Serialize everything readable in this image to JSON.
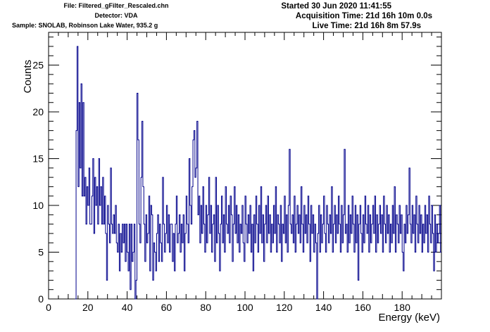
{
  "header": {
    "file": "File: Filtered_gFilter_Rescaled.chn",
    "detector": "Detector: VDA",
    "sample": "Sample: SNOLAB, Robinson Lake Water, 935.2 g",
    "started": "Started 30 Jun 2020 11:41:55",
    "acquisition_time": "Acquisition Time: 21d 16h 10m 0.0s",
    "live_time": "Live Time: 21d 16h 8m 57.9s"
  },
  "colors": {
    "series": "#00008b",
    "axis": "#000000",
    "background": "#ffffff"
  },
  "chart_data": {
    "type": "line",
    "title": "",
    "xlabel": "Energy (keV)",
    "ylabel": "Counts",
    "xlim": [
      0,
      200
    ],
    "ylim": [
      0,
      28.5
    ],
    "xticks": [
      0,
      20,
      40,
      60,
      80,
      100,
      120,
      140,
      160,
      180
    ],
    "yticks": [
      0,
      5,
      10,
      15,
      20,
      25
    ],
    "grid": false,
    "legend": "none",
    "series": [
      {
        "bin_width": 0.5,
        "x_start": 13.5,
        "values": [
          0,
          18,
          27,
          12,
          21,
          14,
          23,
          11,
          21,
          11,
          13,
          8,
          12,
          10,
          14,
          8,
          8,
          11,
          15,
          7,
          13,
          10,
          12,
          8,
          15,
          10,
          12,
          8,
          13,
          8,
          11,
          7,
          2,
          10,
          8,
          6,
          14,
          8,
          7,
          9,
          7,
          10,
          6,
          5,
          8,
          3,
          7,
          5,
          8,
          6,
          8,
          4,
          8,
          5,
          3,
          8,
          1,
          8,
          4,
          5,
          8,
          0,
          2,
          22,
          17,
          8,
          6,
          13,
          19,
          12,
          8,
          4,
          9,
          6,
          7,
          11,
          3,
          10,
          9,
          2,
          6,
          5,
          3,
          7,
          9,
          4,
          8,
          6,
          4,
          13,
          8,
          5,
          7,
          10,
          6,
          9,
          5,
          8,
          8,
          4,
          7,
          3,
          8,
          11,
          6,
          7,
          9,
          5,
          8,
          6,
          9,
          3,
          7,
          11,
          8,
          6,
          15,
          10,
          8,
          12,
          17,
          18,
          13,
          14,
          19,
          9,
          11,
          6,
          10,
          7,
          12,
          8,
          5,
          10,
          6,
          9,
          13,
          7,
          10,
          5,
          8,
          9,
          4,
          13,
          6,
          10,
          7,
          3,
          8,
          11,
          6,
          9,
          5,
          12,
          8,
          7,
          10,
          6,
          11,
          9,
          4,
          8,
          12,
          7,
          10,
          6,
          9,
          5,
          8,
          7,
          10,
          6,
          4,
          11,
          8,
          6,
          9,
          7,
          10,
          5,
          8,
          3,
          9,
          6,
          11,
          8,
          5,
          10,
          7,
          12,
          6,
          9,
          4,
          8,
          10,
          6,
          11,
          7,
          9,
          5,
          8,
          6,
          10,
          7,
          12,
          5,
          9,
          8,
          6,
          10,
          4,
          8,
          7,
          11,
          6,
          9,
          5,
          10,
          16,
          8,
          7,
          9,
          6,
          11,
          5,
          8,
          10,
          7,
          9,
          6,
          12,
          8,
          5,
          10,
          7,
          9,
          6,
          11,
          8,
          4,
          10,
          7,
          9,
          5,
          8,
          6,
          0,
          7,
          10,
          5,
          9,
          6,
          8,
          11,
          7,
          5,
          10,
          8,
          6,
          9,
          7,
          12,
          5,
          8,
          10,
          6,
          9,
          7,
          11,
          8,
          5,
          10,
          6,
          9,
          16,
          7,
          8,
          5,
          10,
          6,
          9,
          7,
          11,
          8,
          5,
          10,
          6,
          9,
          2,
          8,
          10,
          7,
          5,
          9,
          6,
          11,
          8,
          7,
          10,
          5,
          9,
          6,
          8,
          10,
          7,
          11,
          5,
          9,
          6,
          8,
          10,
          7,
          9,
          5,
          11,
          8,
          6,
          10,
          7,
          9,
          5,
          8,
          6,
          10,
          7,
          12,
          5,
          9,
          8,
          6,
          10,
          7,
          9,
          5,
          3,
          8,
          6,
          10,
          7,
          9,
          14,
          8,
          6,
          10,
          7,
          9,
          5,
          11,
          8,
          6,
          10,
          7,
          9,
          5,
          8,
          6,
          10,
          7,
          9,
          5,
          11,
          8,
          6,
          10,
          7,
          3,
          9,
          5,
          8,
          6,
          7,
          10,
          5,
          8,
          6,
          9,
          7,
          5,
          11,
          8,
          6,
          7,
          10,
          5,
          8,
          6,
          9,
          7,
          5,
          8,
          10,
          6,
          7,
          5,
          9,
          8,
          4,
          7,
          5,
          6,
          8,
          3,
          5,
          7,
          6,
          5,
          8,
          7,
          6,
          5,
          7,
          8,
          6,
          5,
          7,
          6,
          5,
          8,
          6,
          5
        ]
      }
    ]
  }
}
